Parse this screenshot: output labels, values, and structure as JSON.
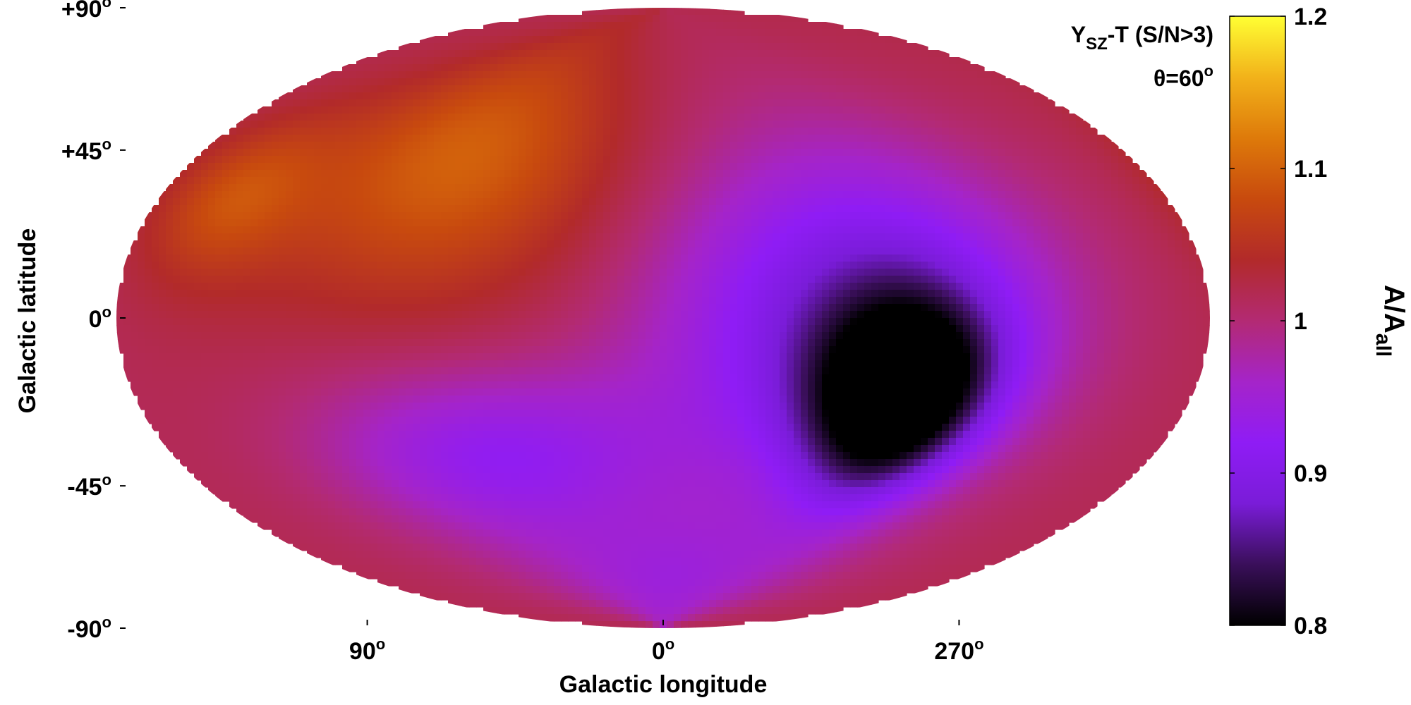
{
  "chart_data": {
    "type": "heatmap",
    "projection": "Hammer-Aitoff all-sky, Galactic coordinates",
    "title_lines": [
      "Y",
      "SZ",
      "-T (S/N>3)",
      "θ=60",
      "o"
    ],
    "annotation": {
      "line1": {
        "main": "Y",
        "sub": "SZ",
        "rest": "-T (S/N>3)"
      },
      "line2": {
        "main": "θ=60",
        "sup": "o"
      }
    },
    "xlabel": "Galactic longitude",
    "ylabel": "Galactic latitude",
    "xticks": [
      {
        "lon": 90,
        "label": "90",
        "sup": "o"
      },
      {
        "lon": 0,
        "label": "0",
        "sup": "o"
      },
      {
        "lon": 270,
        "label": "270",
        "sup": "o"
      }
    ],
    "yticks": [
      {
        "lat": 90,
        "label": "+90",
        "sup": "o"
      },
      {
        "lat": 45,
        "label": "+45",
        "sup": "o"
      },
      {
        "lat": 0,
        "label": "0",
        "sup": "o"
      },
      {
        "lat": -45,
        "label": "-45",
        "sup": "o"
      },
      {
        "lat": -90,
        "label": "-90",
        "sup": "o"
      }
    ],
    "colorbar": {
      "label_main": "A/A",
      "label_sub": "all",
      "range": [
        0.8,
        1.2
      ],
      "ticks": [
        {
          "value": 1.2,
          "label": "1.2"
        },
        {
          "value": 1.1,
          "label": "1.1"
        },
        {
          "value": 1.0,
          "label": "1"
        },
        {
          "value": 0.9,
          "label": "0.9"
        },
        {
          "value": 0.8,
          "label": "0.8"
        }
      ],
      "colormap": [
        "#000000",
        "#3a0f5a",
        "#7a1cd8",
        "#8f1cf5",
        "#a524c9",
        "#b32a73",
        "#b22a2a",
        "#c84a0e",
        "#de7a0a",
        "#f2b21a",
        "#ffff33"
      ]
    },
    "features": [
      {
        "name": "anisotropy minimum",
        "lon": 285,
        "lat": -20,
        "sigma_lon": 20,
        "sigma_lat": 17,
        "value": 0.8
      },
      {
        "name": "low region",
        "lon": 300,
        "lat": 0,
        "sigma_lon": 45,
        "sigma_lat": 32,
        "value": 0.88
      },
      {
        "name": "low band south",
        "lon": 60,
        "lat": -35,
        "sigma_lon": 45,
        "sigma_lat": 16,
        "value": 0.93
      },
      {
        "name": "south pole",
        "lon": 0,
        "lat": -75,
        "sigma_lon": 70,
        "sigma_lat": 18,
        "value": 0.95
      },
      {
        "name": "high region north",
        "lon": 75,
        "lat": 40,
        "sigma_lon": 40,
        "sigma_lat": 25,
        "value": 1.1
      },
      {
        "name": "high region east",
        "lon": 150,
        "lat": 25,
        "sigma_lon": 20,
        "sigma_lat": 12,
        "value": 1.08
      }
    ],
    "value_range_shown": [
      0.8,
      1.2
    ]
  }
}
